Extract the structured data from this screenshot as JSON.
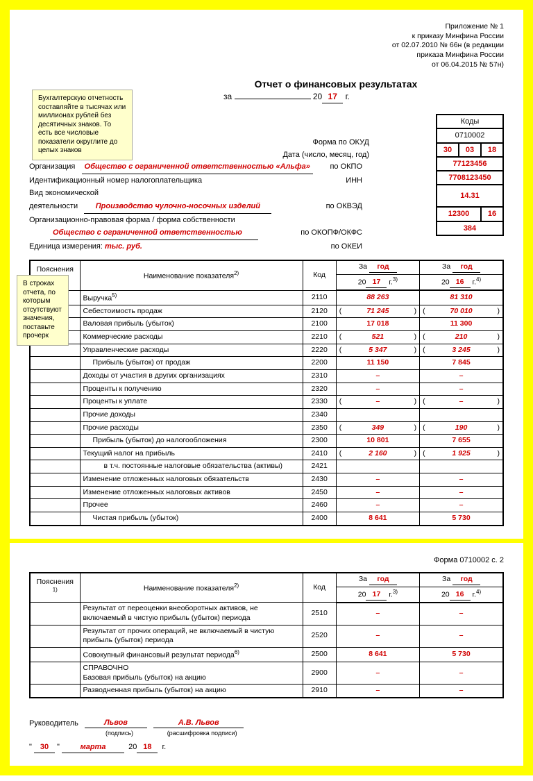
{
  "colors": {
    "frame": "#ffff00",
    "accent": "#d00000",
    "note_bg": "#ffffcc"
  },
  "header": {
    "l1": "Приложение № 1",
    "l2": "к приказу Минфина России",
    "l3": "от 02.07.2010 № 66н (в редакции",
    "l4": "приказа Минфина России",
    "l5": "от 06.04.2015 № 57н)"
  },
  "note1": "Бухгалтерскую отчетность составляйте в тысячах или миллионах рублей без десятичных знаков. То есть все числовые показатели округлите до целых знаков",
  "note2": "В строках отчета, по которым отсутствуют значения, поставьте прочерк",
  "title": "Отчет о финансовых результатах",
  "period": {
    "prefix": "за",
    "year": "17",
    "suffix": "г."
  },
  "codes_header": "Коды",
  "labels": {
    "okud": "Форма по ОКУД",
    "date": "Дата (число, месяц, год)",
    "org": "Организация",
    "okpo": "по ОКПО",
    "inn_label": "Идентификационный номер налогоплательщика",
    "inn_right": "ИНН",
    "activity1": "Вид экономической",
    "activity2": "деятельности",
    "okved": "по ОКВЭД",
    "opf": "Организационно-правовая форма / форма собственности",
    "okopf": "по ОКОПФ/ОКФС",
    "unit": "Единица измерения:",
    "okei": "по ОКЕИ"
  },
  "values": {
    "okud": "0710002",
    "date_d": "30",
    "date_m": "03",
    "date_y": "18",
    "org": "Общество с ограниченной ответственностью «Альфа»",
    "okpo": "77123456",
    "inn": "7708123450",
    "activity": "Производство чулочно-носочных изделий",
    "okved": "14.31",
    "opf": "Общество с ограниченной ответственностью",
    "okopf1": "12300",
    "okopf2": "16",
    "unit": "тыс. руб.",
    "okei": "384"
  },
  "table_headers": {
    "poy": "Пояснения",
    "poy_sup": "1)",
    "name": "Наименование показателя",
    "name_sup": "2)",
    "code": "Код",
    "za": "За",
    "god": "год",
    "y20": "20",
    "yr1": "17",
    "yr2": "16",
    "sup3": "3)",
    "sup4": "4)",
    "g": "г."
  },
  "rows1": [
    {
      "name": "Выручка",
      "sup": "5)",
      "code": "2110",
      "v1": "88 263",
      "v2": "81 310",
      "paren": false,
      "bold": false
    },
    {
      "name": "Себестоимость продаж",
      "code": "2120",
      "v1": "71 245",
      "v2": "70 010",
      "paren": true,
      "bold": false
    },
    {
      "name": "Валовая прибыль (убыток)",
      "code": "2100",
      "v1": "17 018",
      "v2": "11 300",
      "paren": false,
      "bold": true
    },
    {
      "name": "Коммерческие расходы",
      "code": "2210",
      "v1": "521",
      "v2": "210",
      "paren": true,
      "bold": false
    },
    {
      "name": "Управленческие расходы",
      "code": "2220",
      "v1": "5 347",
      "v2": "3 245",
      "paren": true,
      "bold": false
    },
    {
      "name": "Прибыль (убыток) от продаж",
      "code": "2200",
      "v1": "11 150",
      "v2": "7 845",
      "paren": false,
      "bold": true,
      "indent": 1
    },
    {
      "name": "Доходы от участия в других организациях",
      "code": "2310",
      "v1": "–",
      "v2": "–",
      "paren": false,
      "bold": false
    },
    {
      "name": "Проценты к получению",
      "code": "2320",
      "v1": "–",
      "v2": "–",
      "paren": false,
      "bold": false
    },
    {
      "name": "Проценты к уплате",
      "code": "2330",
      "v1": "–",
      "v2": "–",
      "paren": true,
      "bold": false
    },
    {
      "name": "Прочие доходы",
      "code": "2340",
      "v1": "",
      "v2": "",
      "paren": false,
      "bold": false
    },
    {
      "name": "Прочие расходы",
      "code": "2350",
      "v1": "349",
      "v2": "190",
      "paren": true,
      "bold": false
    },
    {
      "name": "Прибыль (убыток) до налогообложения",
      "code": "2300",
      "v1": "10 801",
      "v2": "7 655",
      "paren": false,
      "bold": true,
      "indent": 1
    },
    {
      "name": "Текущий налог на прибыль",
      "code": "2410",
      "v1": "2 160",
      "v2": "1 925",
      "paren": true,
      "bold": false
    },
    {
      "name": "в т.ч. постоянные налоговые обязательства (активы)",
      "code": "2421",
      "v1": "",
      "v2": "",
      "paren": false,
      "bold": false,
      "indent": 2
    },
    {
      "name": "Изменение отложенных налоговых обязательств",
      "code": "2430",
      "v1": "–",
      "v2": "–",
      "paren": false,
      "bold": false
    },
    {
      "name": "Изменение отложенных налоговых активов",
      "code": "2450",
      "v1": "–",
      "v2": "–",
      "paren": false,
      "bold": false
    },
    {
      "name": "Прочее",
      "code": "2460",
      "v1": "–",
      "v2": "–",
      "paren": false,
      "bold": false
    },
    {
      "name": "Чистая прибыль (убыток)",
      "code": "2400",
      "v1": "8 641",
      "v2": "5 730",
      "paren": false,
      "bold": true,
      "indent": 1
    }
  ],
  "page2_note": "Форма 0710002 с. 2",
  "rows2": [
    {
      "name": "Результат от переоценки внеоборотных активов, не включаемый в чистую прибыль (убыток) периода",
      "code": "2510",
      "v1": "–",
      "v2": "–",
      "paren": false
    },
    {
      "name": "Результат от прочих операций, не включаемый в чистую прибыль (убыток) периода",
      "code": "2520",
      "v1": "–",
      "v2": "–",
      "paren": false
    },
    {
      "name": "Совокупный финансовый результат периода",
      "sup": "6)",
      "code": "2500",
      "v1": "8 641",
      "v2": "5 730",
      "paren": false,
      "bold": true
    },
    {
      "name": "СПРАВОЧНО\nБазовая прибыль (убыток) на акцию",
      "code": "2900",
      "v1": "–",
      "v2": "–",
      "paren": false
    },
    {
      "name": "Разводненная прибыль (убыток) на акцию",
      "code": "2910",
      "v1": "–",
      "v2": "–",
      "paren": false
    }
  ],
  "signature": {
    "leader": "Руководитель",
    "sig": "Львов",
    "name": "А.В. Львов",
    "cap1": "(подпись)",
    "cap2": "(расшифровка подписи)",
    "day": "30",
    "month": "марта",
    "yprefix": "20",
    "year": "18",
    "g": "г."
  }
}
